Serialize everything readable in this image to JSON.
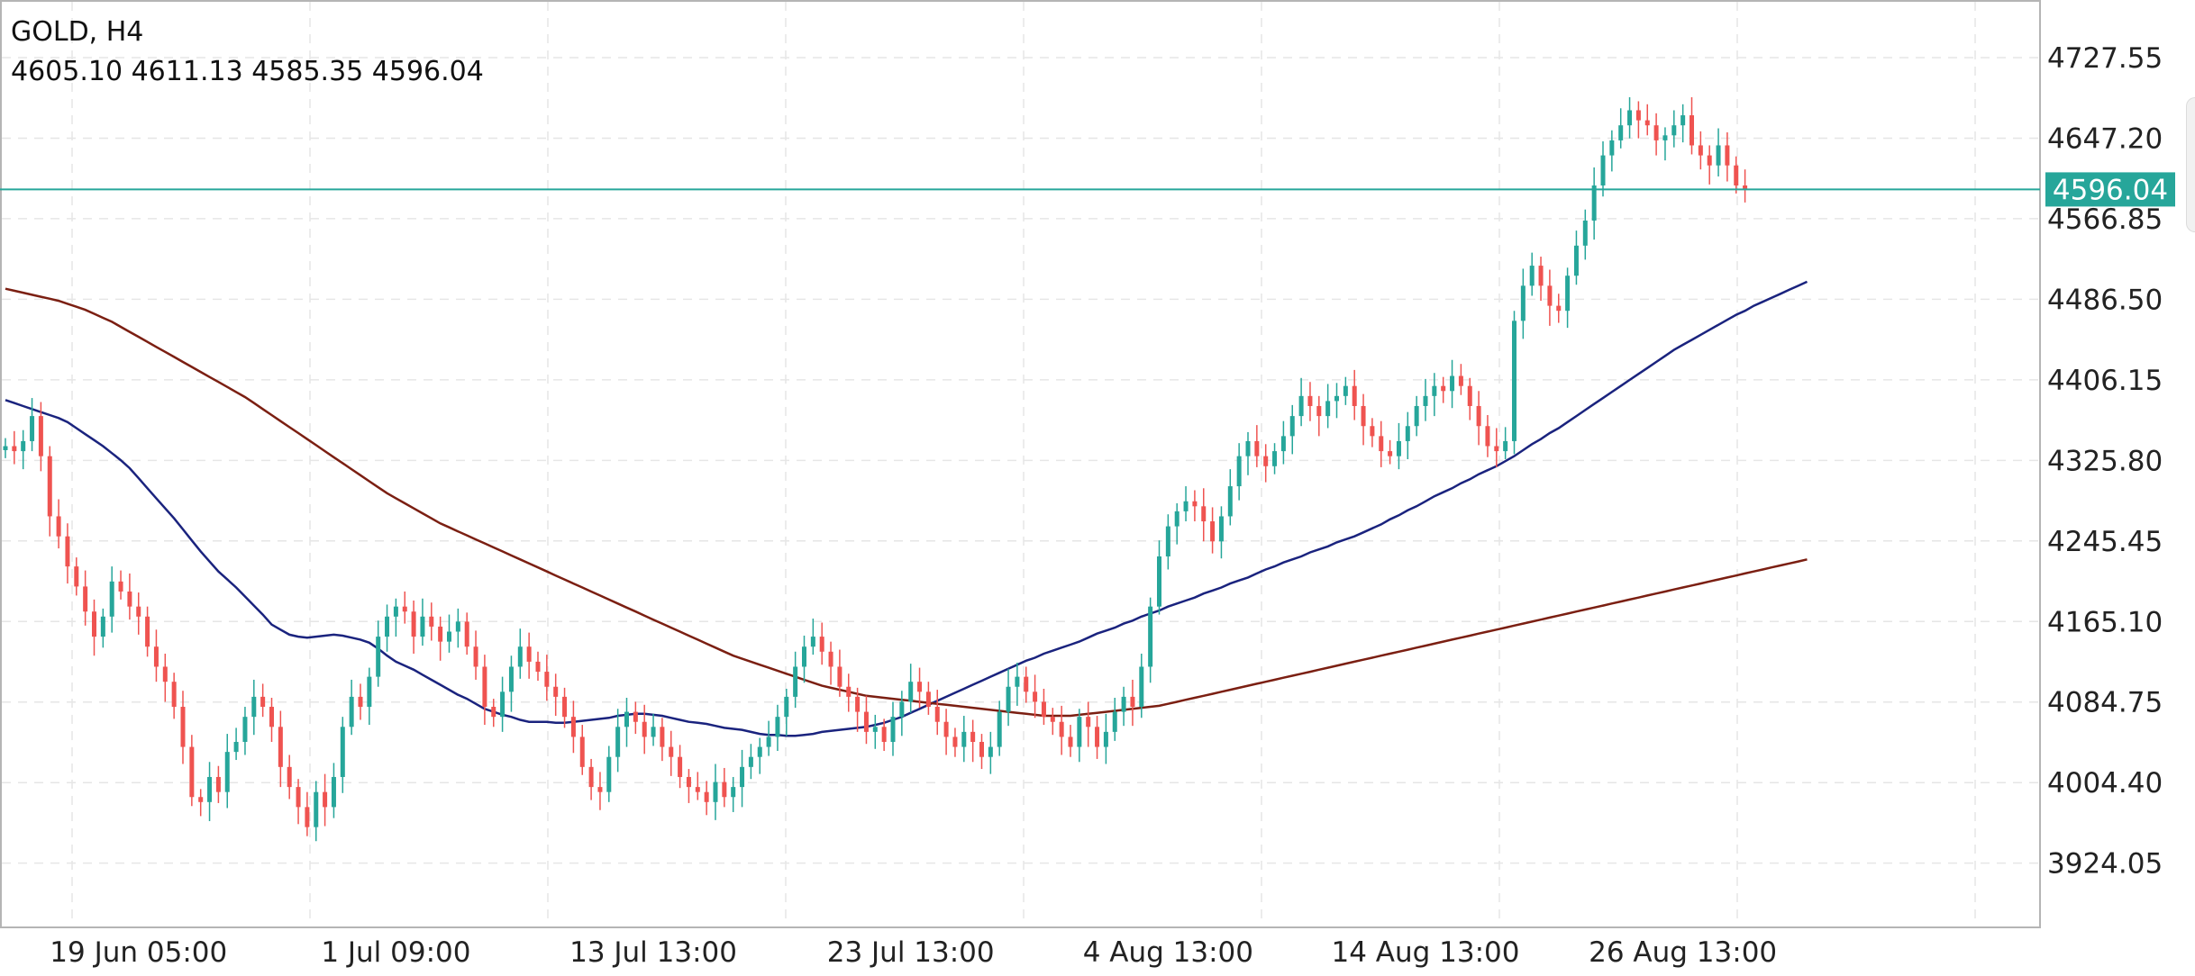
{
  "header": {
    "symbol": "GOLD, H4",
    "ohlc": "4605.10 4611.13 4585.35 4596.04"
  },
  "colors": {
    "up": "#26a69a",
    "down": "#ef5350",
    "ma_fast": "#1a237e",
    "ma_slow": "#7b1f12",
    "price_line": "#26a69a",
    "grid": "#e6e6e6"
  },
  "chart_data": {
    "type": "candlestick",
    "symbol": "GOLD",
    "timeframe": "H4",
    "last_price": 4596.04,
    "last_price_label": "4596.04",
    "ylim": [
      3860,
      4785
    ],
    "yticks": [
      "4727.55",
      "4647.20",
      "4566.85",
      "4486.50",
      "4406.15",
      "4325.80",
      "4245.45",
      "4165.10",
      "4084.75",
      "4004.40",
      "3924.05"
    ],
    "xticks": [
      {
        "label": "19 Jun 05:00",
        "bar": 15
      },
      {
        "label": "1 Jul 09:00",
        "bar": 44
      },
      {
        "label": "13 Jul 13:00",
        "bar": 73
      },
      {
        "label": "23 Jul 13:00",
        "bar": 102
      },
      {
        "label": "4 Aug 13:00",
        "bar": 131
      },
      {
        "label": "14 Aug 13:00",
        "bar": 160
      },
      {
        "label": "26 Aug 13:00",
        "bar": 189
      }
    ],
    "grid": true,
    "closes": [
      4340,
      4335,
      4345,
      4370,
      4330,
      4270,
      4250,
      4220,
      4200,
      4175,
      4150,
      4170,
      4205,
      4195,
      4180,
      4170,
      4140,
      4120,
      4105,
      4080,
      4040,
      3990,
      3985,
      4010,
      3995,
      4035,
      4045,
      4070,
      4090,
      4080,
      4060,
      4020,
      4000,
      3980,
      3960,
      3995,
      3980,
      4010,
      4060,
      4090,
      4080,
      4110,
      4150,
      4170,
      4180,
      4175,
      4150,
      4170,
      4160,
      4145,
      4155,
      4165,
      4140,
      4120,
      4080,
      4070,
      4095,
      4120,
      4140,
      4125,
      4115,
      4100,
      4090,
      4070,
      4050,
      4020,
      4000,
      3995,
      4030,
      4060,
      4075,
      4065,
      4050,
      4060,
      4040,
      4030,
      4010,
      4000,
      3995,
      3985,
      4005,
      3990,
      4000,
      4020,
      4030,
      4040,
      4050,
      4070,
      4090,
      4120,
      4140,
      4150,
      4135,
      4120,
      4100,
      4090,
      4075,
      4055,
      4060,
      4045,
      4070,
      4085,
      4105,
      4095,
      4080,
      4065,
      4050,
      4040,
      4055,
      4045,
      4030,
      4040,
      4075,
      4100,
      4110,
      4095,
      4085,
      4070,
      4065,
      4050,
      4040,
      4070,
      4060,
      4040,
      4055,
      4075,
      4090,
      4080,
      4120,
      4180,
      4230,
      4260,
      4275,
      4285,
      4280,
      4265,
      4245,
      4270,
      4300,
      4330,
      4345,
      4330,
      4320,
      4335,
      4350,
      4370,
      4390,
      4380,
      4370,
      4385,
      4390,
      4400,
      4380,
      4360,
      4350,
      4335,
      4330,
      4345,
      4360,
      4380,
      4390,
      4400,
      4395,
      4410,
      4400,
      4380,
      4360,
      4340,
      4335,
      4345,
      4465,
      4500,
      4520,
      4500,
      4480,
      4475,
      4510,
      4540,
      4565,
      4600,
      4630,
      4645,
      4660,
      4675,
      4665,
      4660,
      4645,
      4650,
      4660,
      4670,
      4640,
      4630,
      4620,
      4640,
      4620,
      4600,
      4596.04
    ],
    "series": [
      {
        "name": "ma_fast",
        "values": [
          4386,
          4383,
          4380,
          4377,
          4374,
          4371,
          4368,
          4364,
          4358,
          4352,
          4346,
          4340,
          4333,
          4326,
          4318,
          4308,
          4298,
          4288,
          4278,
          4268,
          4257,
          4246,
          4235,
          4225,
          4215,
          4207,
          4199,
          4190,
          4181,
          4172,
          4162,
          4157,
          4152,
          4150,
          4149,
          4150,
          4151,
          4152,
          4151,
          4149,
          4147,
          4144,
          4138,
          4131,
          4125,
          4121,
          4117,
          4112,
          4107,
          4102,
          4097,
          4092,
          4088,
          4083,
          4078,
          4075,
          4072,
          4070,
          4067,
          4065,
          4065,
          4065,
          4064,
          4064,
          4065,
          4066,
          4067,
          4068,
          4069,
          4071,
          4072,
          4073,
          4073,
          4072,
          4071,
          4069,
          4067,
          4065,
          4064,
          4063,
          4061,
          4059,
          4058,
          4057,
          4055,
          4053,
          4052,
          4052,
          4051,
          4051,
          4052,
          4053,
          4055,
          4056,
          4057,
          4058,
          4059,
          4060,
          4062,
          4064,
          4067,
          4070,
          4074,
          4078,
          4082,
          4086,
          4090,
          4094,
          4098,
          4102,
          4106,
          4110,
          4114,
          4118,
          4122,
          4126,
          4129,
          4133,
          4136,
          4139,
          4142,
          4145,
          4149,
          4153,
          4156,
          4159,
          4163,
          4166,
          4170,
          4173,
          4176,
          4180,
          4183,
          4186,
          4189,
          4193,
          4196,
          4199,
          4203,
          4206,
          4209,
          4213,
          4217,
          4220,
          4224,
          4227,
          4230,
          4234,
          4237,
          4240,
          4244,
          4247,
          4250,
          4254,
          4258,
          4262,
          4267,
          4271,
          4276,
          4280,
          4285,
          4290,
          4294,
          4298,
          4303,
          4307,
          4312,
          4316,
          4320,
          4325,
          4330,
          4336,
          4342,
          4347,
          4353,
          4358,
          4364,
          4370,
          4376,
          4382,
          4388,
          4394,
          4400,
          4406,
          4412,
          4418,
          4424,
          4430,
          4436,
          4441,
          4446,
          4451,
          4456,
          4461,
          4466,
          4471,
          4475,
          4480,
          4484,
          4488,
          4492,
          4496,
          4500,
          4504
        ]
      },
      {
        "name": "ma_slow",
        "values": [
          4497,
          4495,
          4493,
          4491,
          4489,
          4487,
          4485,
          4482,
          4479,
          4476,
          4472,
          4468,
          4464,
          4459,
          4454,
          4449,
          4444,
          4439,
          4434,
          4429,
          4424,
          4419,
          4414,
          4409,
          4404,
          4399,
          4394,
          4389,
          4383,
          4377,
          4371,
          4365,
          4359,
          4353,
          4347,
          4341,
          4335,
          4329,
          4323,
          4317,
          4311,
          4305,
          4299,
          4293,
          4288,
          4283,
          4278,
          4273,
          4268,
          4263,
          4259,
          4255,
          4251,
          4247,
          4243,
          4239,
          4235,
          4231,
          4227,
          4223,
          4219,
          4215,
          4211,
          4207,
          4203,
          4199,
          4195,
          4191,
          4187,
          4183,
          4179,
          4175,
          4171,
          4167,
          4163,
          4159,
          4155,
          4151,
          4147,
          4143,
          4139,
          4135,
          4131,
          4128,
          4125,
          4122,
          4119,
          4116,
          4113,
          4110,
          4107,
          4104,
          4101,
          4099,
          4097,
          4095,
          4093,
          4091,
          4090,
          4089,
          4088,
          4087,
          4086,
          4085,
          4084,
          4083,
          4082,
          4081,
          4080,
          4079,
          4078,
          4077,
          4076,
          4075,
          4074,
          4073,
          4072,
          4071,
          4071,
          4071,
          4071,
          4072,
          4073,
          4074,
          4075,
          4076,
          4077,
          4078,
          4079,
          4080,
          4081,
          4083,
          4085,
          4087,
          4089,
          4091,
          4093,
          4095,
          4097,
          4099,
          4101,
          4103,
          4105,
          4107,
          4109,
          4111,
          4113,
          4115,
          4117,
          4119,
          4121,
          4123,
          4125,
          4127,
          4129,
          4131,
          4133,
          4135,
          4137,
          4139,
          4141,
          4143,
          4145,
          4147,
          4149,
          4151,
          4153,
          4155,
          4157,
          4159,
          4161,
          4163,
          4165,
          4167,
          4169,
          4171,
          4173,
          4175,
          4177,
          4179,
          4181,
          4183,
          4185,
          4187,
          4189,
          4191,
          4193,
          4195,
          4197,
          4199,
          4201,
          4203,
          4205,
          4207,
          4209,
          4211,
          4213,
          4215,
          4217,
          4219,
          4221,
          4223,
          4225,
          4227
        ]
      }
    ]
  }
}
